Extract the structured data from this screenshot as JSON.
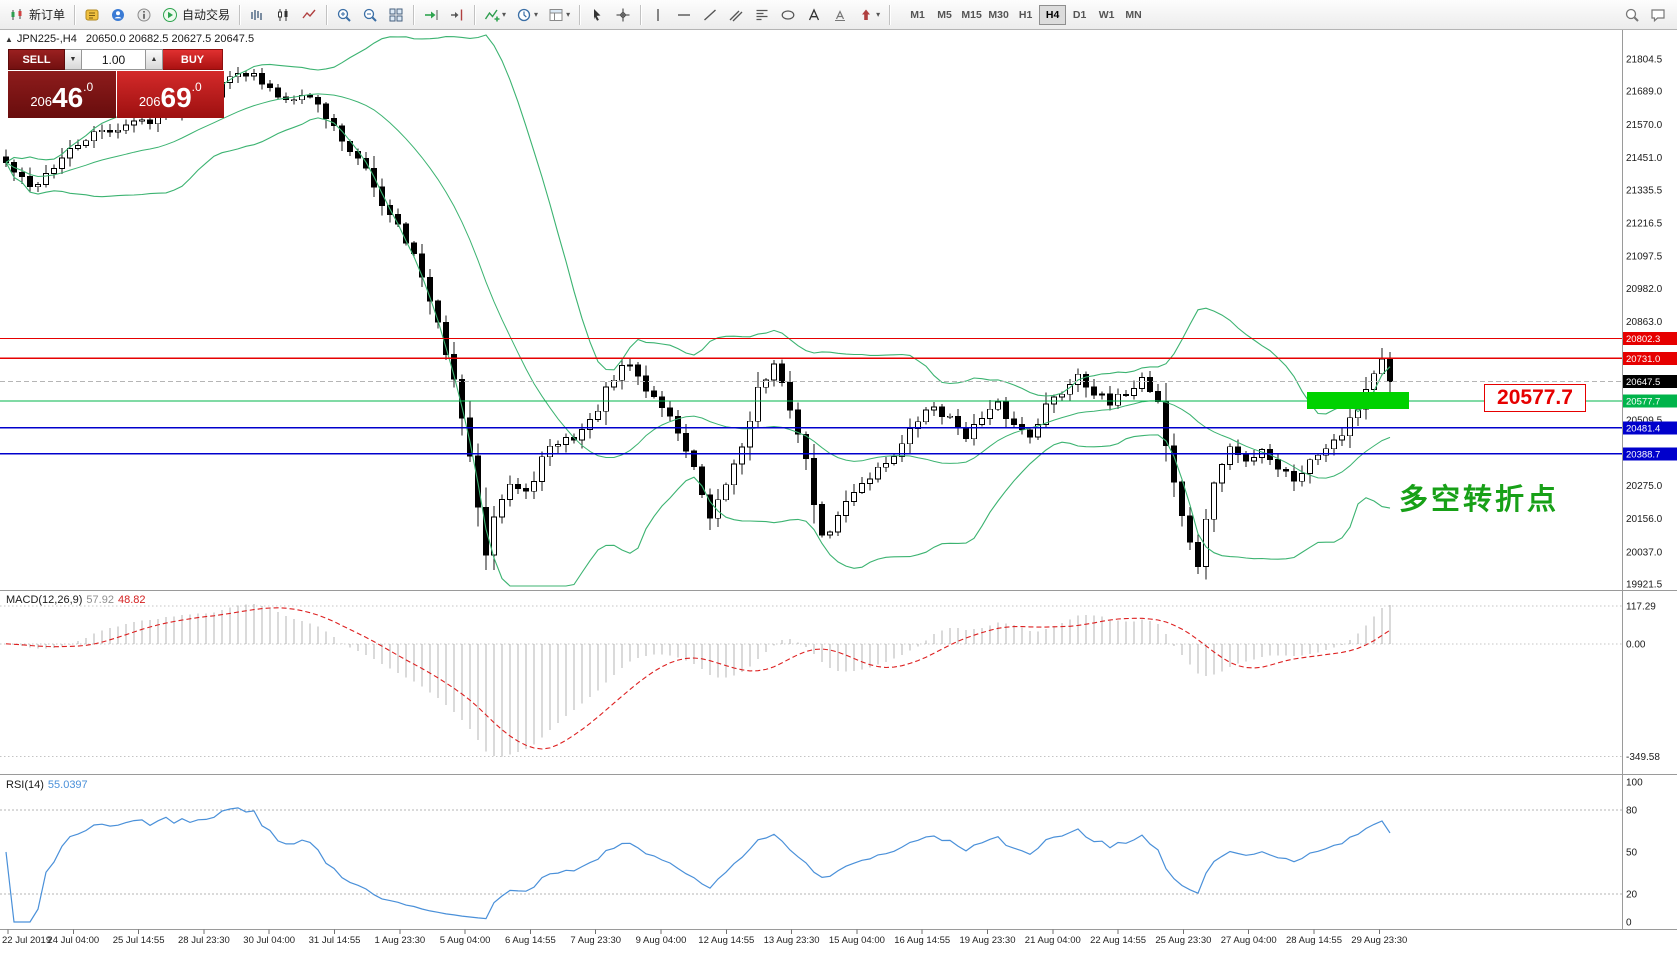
{
  "toolbar": {
    "new_order_label": "新订单",
    "autotrading_label": "自动交易",
    "timeframes": [
      "M1",
      "M5",
      "M15",
      "M30",
      "H1",
      "H4",
      "D1",
      "W1",
      "MN"
    ],
    "active_timeframe": "H4"
  },
  "icons": {
    "chevron_down": "▾",
    "up_small": "▲",
    "down_small": "▼",
    "collapse_triangle": "▲"
  },
  "chart": {
    "symbol_info": "JPN225-,H4",
    "ohlc_text": "20650.0 20682.5 20627.5 20647.5",
    "trade_panel": {
      "sell_label": "SELL",
      "buy_label": "BUY",
      "volume": "1.00",
      "sell_price_prefix": "206",
      "sell_price_big": "46",
      "sell_price_frac": ".0",
      "buy_price_prefix": "206",
      "buy_price_big": "69",
      "buy_price_frac": ".0"
    },
    "annotations": {
      "support_price": "20577.7",
      "turning_point": "多空转折点"
    }
  },
  "macd": {
    "label": "MACD(12,26,9)",
    "value_main": "57.92",
    "value_signal": "48.82"
  },
  "rsi": {
    "label": "RSI(14)",
    "value": "55.0397"
  },
  "colors": {
    "hline_red": "#e60000",
    "hline_blue": "#0000cc",
    "hline_green": "#00b44b",
    "tag_black": "#000000",
    "bollinger": "#3cb371",
    "rsi_line": "#4a90d9",
    "macd_signal": "#dd2020",
    "macd_hist": "#b4b4b4",
    "zone_green": "#00d200",
    "annotation_green": "#17a017",
    "callout_red": "#e60000",
    "sell_maroon": "#8e1c1c",
    "buy_red": "#d42a2a"
  },
  "chart_data": {
    "type": "candlestick",
    "symbol": "JPN225-",
    "timeframe": "H4",
    "current_ohlc": {
      "open": 20650.0,
      "high": 20682.5,
      "low": 20627.5,
      "close": 20647.5
    },
    "price_axis_labels": [
      21804.5,
      21689.0,
      21570.0,
      21451.0,
      21335.5,
      21216.5,
      21097.5,
      20982.0,
      20863.0,
      20509.5,
      20275.0,
      20156.0,
      20037.0,
      19921.5
    ],
    "horizontal_lines": [
      {
        "value": 20802.3,
        "color": "red"
      },
      {
        "value": 20731.0,
        "color": "red"
      },
      {
        "value": 20647.5,
        "color": "black",
        "role": "current_price"
      },
      {
        "value": 20577.7,
        "color": "green"
      },
      {
        "value": 20481.4,
        "color": "blue"
      },
      {
        "value": 20388.7,
        "color": "blue"
      }
    ],
    "support_zone": {
      "price_top": 20610,
      "price_bottom": 20550
    },
    "close_anchors": [
      [
        0,
        21430
      ],
      [
        3,
        21340
      ],
      [
        6,
        21420
      ],
      [
        10,
        21520
      ],
      [
        14,
        21560
      ],
      [
        18,
        21590
      ],
      [
        22,
        21640
      ],
      [
        26,
        21680
      ],
      [
        29,
        21770
      ],
      [
        31,
        21740
      ],
      [
        33,
        21690
      ],
      [
        35,
        21660
      ],
      [
        37,
        21690
      ],
      [
        39,
        21640
      ],
      [
        42,
        21520
      ],
      [
        45,
        21400
      ],
      [
        47,
        21290
      ],
      [
        49,
        21220
      ],
      [
        51,
        21100
      ],
      [
        53,
        20930
      ],
      [
        55,
        20760
      ],
      [
        57,
        20520
      ],
      [
        59,
        20210
      ],
      [
        60,
        20040
      ],
      [
        61,
        20180
      ],
      [
        63,
        20280
      ],
      [
        65,
        20240
      ],
      [
        67,
        20370
      ],
      [
        69,
        20430
      ],
      [
        71,
        20450
      ],
      [
        73,
        20500
      ],
      [
        75,
        20610
      ],
      [
        77,
        20690
      ],
      [
        78,
        20710
      ],
      [
        80,
        20620
      ],
      [
        82,
        20560
      ],
      [
        84,
        20470
      ],
      [
        86,
        20330
      ],
      [
        88,
        20140
      ],
      [
        90,
        20280
      ],
      [
        92,
        20420
      ],
      [
        94,
        20620
      ],
      [
        96,
        20700
      ],
      [
        98,
        20560
      ],
      [
        100,
        20360
      ],
      [
        102,
        20080
      ],
      [
        104,
        20160
      ],
      [
        106,
        20260
      ],
      [
        108,
        20310
      ],
      [
        110,
        20360
      ],
      [
        112,
        20420
      ],
      [
        114,
        20510
      ],
      [
        116,
        20560
      ],
      [
        118,
        20510
      ],
      [
        120,
        20460
      ],
      [
        122,
        20510
      ],
      [
        124,
        20560
      ],
      [
        126,
        20490
      ],
      [
        128,
        20460
      ],
      [
        130,
        20560
      ],
      [
        132,
        20610
      ],
      [
        134,
        20680
      ],
      [
        136,
        20610
      ],
      [
        138,
        20560
      ],
      [
        140,
        20610
      ],
      [
        142,
        20660
      ],
      [
        144,
        20580
      ],
      [
        145,
        20420
      ],
      [
        147,
        20160
      ],
      [
        149,
        19990
      ],
      [
        151,
        20290
      ],
      [
        153,
        20410
      ],
      [
        155,
        20360
      ],
      [
        157,
        20410
      ],
      [
        159,
        20340
      ],
      [
        161,
        20300
      ],
      [
        163,
        20360
      ],
      [
        165,
        20420
      ],
      [
        167,
        20470
      ],
      [
        169,
        20560
      ],
      [
        171,
        20680
      ],
      [
        172,
        20720
      ],
      [
        173,
        20647.5
      ]
    ],
    "bollinger": {
      "period": 20,
      "deviation": 2
    },
    "macd": {
      "fast": 12,
      "slow": 26,
      "signal": 9,
      "axis_labels": [
        "117.29",
        "0.00",
        "-349.58"
      ]
    },
    "rsi": {
      "period": 14,
      "levels": [
        80,
        20
      ],
      "axis_labels": [
        "100",
        "80",
        "50",
        "20",
        "0"
      ]
    },
    "time_axis": [
      "22 Jul 2019",
      "24 Jul 04:00",
      "25 Jul 14:55",
      "28 Jul 23:30",
      "30 Jul 04:00",
      "31 Jul 14:55",
      "1 Aug 23:30",
      "5 Aug 04:00",
      "6 Aug 14:55",
      "7 Aug 23:30",
      "9 Aug 04:00",
      "12 Aug 14:55",
      "13 Aug 23:30",
      "15 Aug 04:00",
      "16 Aug 14:55",
      "19 Aug 23:30",
      "21 Aug 04:00",
      "22 Aug 14:55",
      "25 Aug 23:30",
      "27 Aug 04:00",
      "28 Aug 14:55",
      "29 Aug 23:30"
    ]
  }
}
